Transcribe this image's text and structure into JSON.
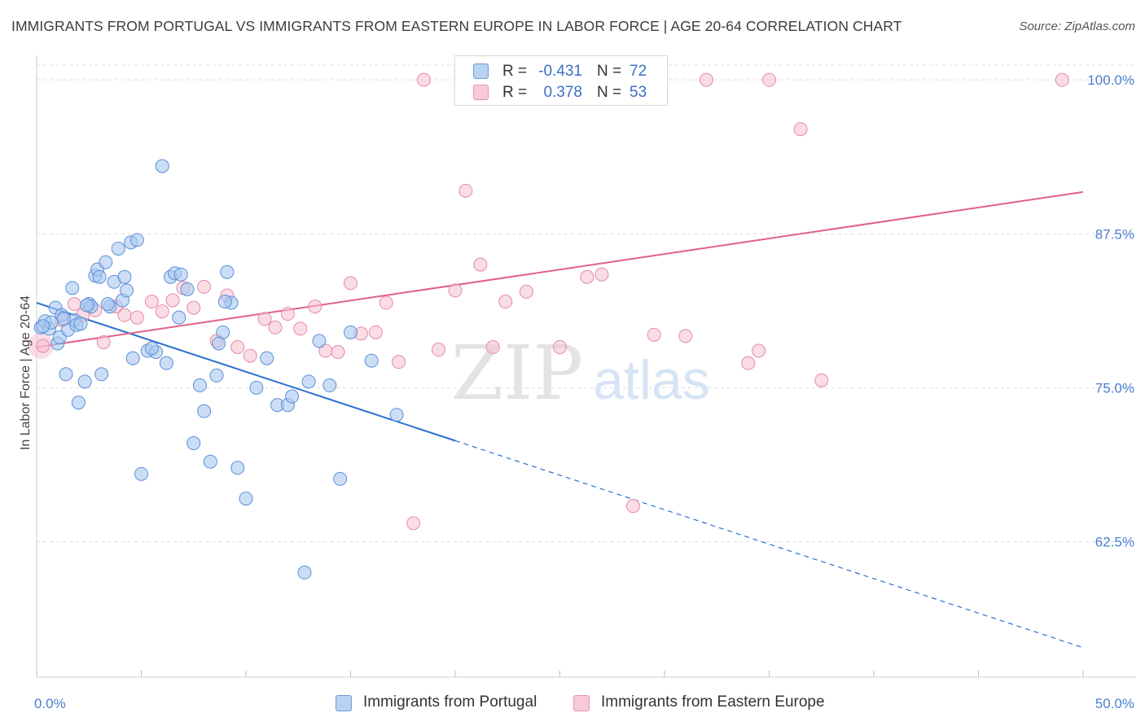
{
  "title": "IMMIGRANTS FROM PORTUGAL VS IMMIGRANTS FROM EASTERN EUROPE IN LABOR FORCE | AGE 20-64 CORRELATION CHART",
  "source": "Source: ZipAtlas.com",
  "watermark": {
    "zip": "ZIP",
    "atlas": "atlas"
  },
  "colors": {
    "blue_fill": "#a9c8f0",
    "blue_stroke": "#5b8fd6",
    "blue_line": "#2a6fcf",
    "pink_fill": "#f6bfd0",
    "pink_stroke": "#e58aa8",
    "pink_line": "#e0608d",
    "tick_label": "#4a7fd0",
    "grid": "#dcdcdc"
  },
  "legend_top": {
    "rows": [
      {
        "r_label": "R =",
        "r_value": "-0.431",
        "n_label": "N =",
        "n_value": "72"
      },
      {
        "r_label": "R =",
        "r_value": "0.378",
        "n_label": "N =",
        "n_value": "53"
      }
    ]
  },
  "chart_data": {
    "type": "scatter",
    "title": "IMMIGRANTS FROM PORTUGAL VS IMMIGRANTS FROM EASTERN EUROPE IN LABOR FORCE | AGE 20-64 CORRELATION CHART",
    "xlabel": "",
    "ylabel": "In Labor Force | Age 20-64",
    "xlim": [
      0,
      50
    ],
    "ylim": [
      51.5,
      101.2
    ],
    "x_tick_labels": [
      "0.0%",
      "50.0%"
    ],
    "y_ticks": [
      62.5,
      75.0,
      87.5,
      100.0
    ],
    "y_tick_labels": [
      "62.5%",
      "75.0%",
      "87.5%",
      "100.0%"
    ],
    "grid": true,
    "legend_position": "bottom",
    "series": [
      {
        "name": "Immigrants from Portugal",
        "color": "blue",
        "trend": {
          "x0": 0,
          "y0": 81.9,
          "x1": 20,
          "y1": 70.7,
          "dash_to_x": 50,
          "dash_to_y": 53.9
        },
        "points": [
          [
            0.2,
            79.9
          ],
          [
            0.4,
            80.4
          ],
          [
            0.6,
            79.8
          ],
          [
            0.7,
            80.3
          ],
          [
            0.9,
            81.5
          ],
          [
            1.0,
            78.6
          ],
          [
            1.1,
            79.1
          ],
          [
            1.2,
            80.9
          ],
          [
            1.4,
            76.1
          ],
          [
            1.5,
            79.7
          ],
          [
            1.7,
            83.1
          ],
          [
            1.8,
            80.5
          ],
          [
            1.9,
            80.1
          ],
          [
            2.0,
            73.8
          ],
          [
            2.1,
            80.2
          ],
          [
            2.3,
            75.5
          ],
          [
            2.5,
            81.8
          ],
          [
            2.6,
            81.6
          ],
          [
            2.8,
            84.1
          ],
          [
            2.9,
            84.6
          ],
          [
            3.1,
            76.1
          ],
          [
            3.3,
            85.2
          ],
          [
            3.5,
            81.6
          ],
          [
            3.7,
            83.6
          ],
          [
            3.9,
            86.3
          ],
          [
            4.1,
            82.1
          ],
          [
            4.3,
            82.9
          ],
          [
            4.5,
            86.8
          ],
          [
            4.6,
            77.4
          ],
          [
            4.8,
            87.0
          ],
          [
            5.0,
            68.0
          ],
          [
            5.3,
            78.0
          ],
          [
            5.7,
            77.9
          ],
          [
            6.0,
            93.0
          ],
          [
            6.2,
            77.0
          ],
          [
            6.4,
            84.0
          ],
          [
            6.6,
            84.3
          ],
          [
            6.8,
            80.7
          ],
          [
            7.2,
            83.0
          ],
          [
            7.5,
            70.5
          ],
          [
            7.8,
            75.2
          ],
          [
            8.0,
            73.1
          ],
          [
            8.3,
            69.0
          ],
          [
            8.6,
            76.0
          ],
          [
            8.9,
            79.5
          ],
          [
            9.1,
            84.4
          ],
          [
            9.3,
            81.9
          ],
          [
            9.6,
            68.5
          ],
          [
            10.0,
            66.0
          ],
          [
            10.5,
            75.0
          ],
          [
            11.0,
            77.4
          ],
          [
            11.5,
            73.6
          ],
          [
            12.0,
            73.6
          ],
          [
            12.8,
            60.0
          ],
          [
            13.5,
            78.8
          ],
          [
            14.0,
            75.2
          ],
          [
            14.5,
            67.6
          ],
          [
            15.0,
            79.5
          ],
          [
            16.0,
            77.2
          ],
          [
            17.2,
            72.8
          ],
          [
            4.2,
            84.0
          ],
          [
            3.4,
            81.8
          ],
          [
            1.3,
            80.6
          ],
          [
            0.3,
            80.0
          ],
          [
            2.4,
            81.7
          ],
          [
            5.5,
            78.2
          ],
          [
            8.7,
            78.6
          ],
          [
            12.2,
            74.3
          ],
          [
            9.0,
            82.0
          ],
          [
            6.9,
            84.2
          ],
          [
            3.0,
            84.0
          ],
          [
            13.0,
            75.5
          ]
        ]
      },
      {
        "name": "Immigrants from Eastern Europe",
        "color": "pink",
        "trend": {
          "x0": 0,
          "y0": 78.3,
          "x1": 50,
          "y1": 90.9
        },
        "points": [
          [
            0.3,
            78.4
          ],
          [
            1.2,
            80.5
          ],
          [
            1.8,
            81.8
          ],
          [
            2.2,
            80.9
          ],
          [
            2.8,
            81.3
          ],
          [
            3.2,
            78.7
          ],
          [
            3.8,
            81.6
          ],
          [
            4.2,
            80.9
          ],
          [
            4.8,
            80.7
          ],
          [
            5.5,
            82.0
          ],
          [
            6.0,
            81.2
          ],
          [
            6.5,
            82.1
          ],
          [
            7.0,
            83.1
          ],
          [
            7.5,
            81.5
          ],
          [
            8.0,
            83.2
          ],
          [
            8.6,
            78.8
          ],
          [
            9.1,
            82.5
          ],
          [
            9.6,
            78.3
          ],
          [
            10.2,
            77.6
          ],
          [
            10.9,
            80.6
          ],
          [
            11.4,
            79.9
          ],
          [
            12.0,
            81.0
          ],
          [
            12.6,
            79.8
          ],
          [
            13.3,
            81.6
          ],
          [
            13.8,
            78.0
          ],
          [
            14.4,
            77.9
          ],
          [
            15.0,
            83.5
          ],
          [
            15.5,
            79.4
          ],
          [
            16.2,
            79.5
          ],
          [
            16.7,
            81.9
          ],
          [
            17.3,
            77.1
          ],
          [
            18.0,
            64.0
          ],
          [
            18.5,
            100.0
          ],
          [
            19.2,
            78.1
          ],
          [
            20.0,
            82.9
          ],
          [
            20.5,
            91.0
          ],
          [
            21.2,
            85.0
          ],
          [
            21.8,
            78.3
          ],
          [
            22.4,
            82.0
          ],
          [
            23.4,
            82.8
          ],
          [
            25.0,
            78.3
          ],
          [
            26.3,
            84.0
          ],
          [
            27.0,
            84.2
          ],
          [
            28.5,
            65.4
          ],
          [
            29.5,
            79.3
          ],
          [
            32.0,
            100.0
          ],
          [
            34.0,
            77.0
          ],
          [
            34.5,
            78.0
          ],
          [
            35.0,
            100.0
          ],
          [
            36.5,
            96.0
          ],
          [
            37.5,
            75.6
          ],
          [
            49.0,
            100.0
          ],
          [
            31.0,
            79.2
          ]
        ]
      }
    ]
  },
  "legend_bottom": {
    "items": [
      {
        "label": "Immigrants from Portugal"
      },
      {
        "label": "Immigrants from Eastern Europe"
      }
    ]
  }
}
